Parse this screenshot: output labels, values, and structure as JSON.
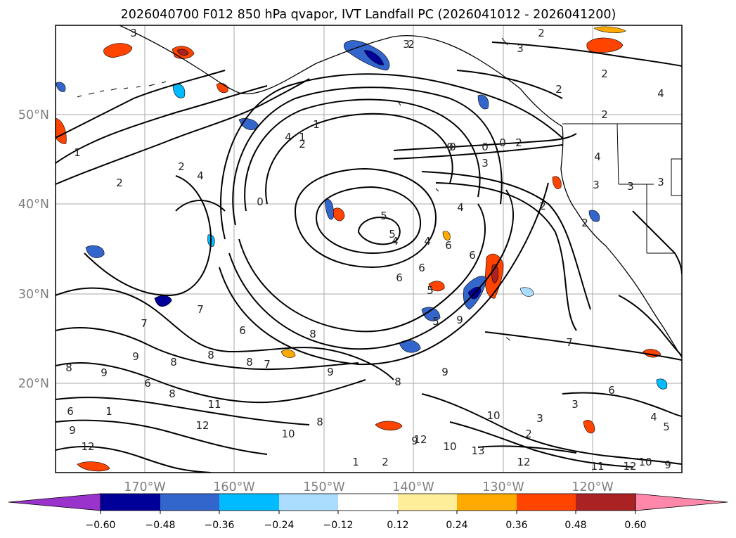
{
  "title": "2026040700 F012 850 hPa qvapor, IVT Landfall PC (2026041012 - 2026041200)",
  "map": {
    "lon_labels": [
      "170°W",
      "160°W",
      "150°W",
      "140°W",
      "130°W",
      "120°W"
    ],
    "lat_labels": [
      "50°N",
      "40°N",
      "30°N",
      "20°N"
    ],
    "contour_labels": [
      "3",
      "2",
      "1",
      "2",
      "2",
      "4",
      "2",
      "4",
      "2",
      "3",
      "2",
      "4",
      "1",
      "1",
      "0",
      "0",
      "0",
      "0",
      "3",
      "2",
      "2",
      "4",
      "3",
      "3",
      "2",
      "0",
      "2",
      "3",
      "5",
      "5",
      "4",
      "4",
      "6",
      "6",
      "4",
      "2",
      "3",
      "6",
      "7",
      "7",
      "6",
      "8",
      "8",
      "8",
      "9",
      "8",
      "9",
      "8",
      "6",
      "8",
      "7",
      "9",
      "5",
      "5",
      "9",
      "8",
      "11",
      "12",
      "12",
      "10",
      "10",
      "9",
      "10",
      "13",
      "12",
      "12",
      "11",
      "8",
      "9",
      "9",
      "1",
      "3",
      "2",
      "3",
      "6",
      "4",
      "5",
      "2",
      "7",
      "12",
      "9",
      "10",
      "6",
      "1",
      "6"
    ]
  },
  "colorbar": {
    "colors": [
      "#9933cc",
      "#000099",
      "#3366cc",
      "#00bbff",
      "#aaddff",
      "#ffffff",
      "#ffee99",
      "#ffaa00",
      "#ff4400",
      "#aa2222",
      "#ff88aa"
    ],
    "tick_labels": [
      "−0.60",
      "−0.48",
      "−0.36",
      "−0.24",
      "−0.12",
      "0.12",
      "0.24",
      "0.36",
      "0.48",
      "0.60"
    ]
  }
}
